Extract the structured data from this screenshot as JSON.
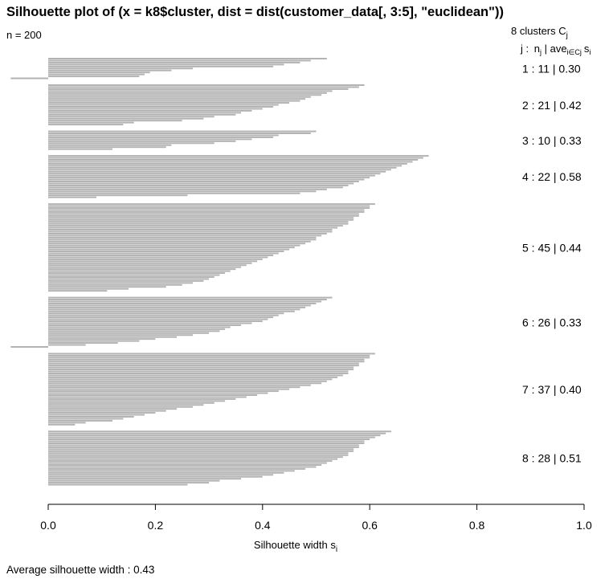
{
  "chart_data": {
    "type": "bar",
    "orientation": "horizontal",
    "title": "Silhouette plot of (x = k8$cluster, dist = dist(customer_data[, 3:5], \"euclidean\"))",
    "n_label": "n = 200",
    "n": 200,
    "clusters_header": "8  clusters  C",
    "clusters_header_sub": "j",
    "column_header": {
      "j": "j :",
      "n": "n",
      "n_sub": "j",
      "ave": " | ave",
      "ave_sub": "i∈Cj",
      "s": "s",
      "s_sub": "i"
    },
    "xlabel": "Silhouette width s",
    "xlabel_sub": "i",
    "xlim": [
      0,
      1.0
    ],
    "x_ticks": [
      0,
      0.2,
      0.4,
      0.6,
      0.8,
      1.0
    ],
    "x_tick_labels": [
      "0.0",
      "0.2",
      "0.4",
      "0.6",
      "0.8",
      "1.0"
    ],
    "average_label": "Average silhouette width :  0.43",
    "average_silhouette_width": 0.43,
    "bar_color": "#b3b3b3",
    "clusters": [
      {
        "j": 1,
        "n": 11,
        "ave": 0.3,
        "label": "1 :   11  |  0.30",
        "widths": [
          0.52,
          0.49,
          0.47,
          0.44,
          0.42,
          0.27,
          0.23,
          0.19,
          0.18,
          0.17,
          -0.07
        ]
      },
      {
        "j": 2,
        "n": 21,
        "ave": 0.42,
        "label": "2 :   21  |  0.42",
        "widths": [
          0.59,
          0.58,
          0.56,
          0.53,
          0.52,
          0.51,
          0.49,
          0.48,
          0.47,
          0.45,
          0.43,
          0.42,
          0.4,
          0.38,
          0.36,
          0.35,
          0.31,
          0.29,
          0.25,
          0.16,
          0.14
        ]
      },
      {
        "j": 3,
        "n": 10,
        "ave": 0.33,
        "label": "3 :   10  |  0.33",
        "widths": [
          0.5,
          0.49,
          0.43,
          0.42,
          0.38,
          0.35,
          0.31,
          0.23,
          0.22,
          0.12
        ]
      },
      {
        "j": 4,
        "n": 22,
        "ave": 0.58,
        "label": "4 :   22  |  0.58",
        "widths": [
          0.71,
          0.7,
          0.69,
          0.68,
          0.67,
          0.66,
          0.65,
          0.64,
          0.63,
          0.62,
          0.61,
          0.6,
          0.59,
          0.58,
          0.57,
          0.56,
          0.55,
          0.52,
          0.5,
          0.47,
          0.26,
          0.09
        ]
      },
      {
        "j": 5,
        "n": 45,
        "ave": 0.44,
        "label": "5 :   45  |  0.44",
        "widths": [
          0.61,
          0.6,
          0.6,
          0.59,
          0.59,
          0.58,
          0.58,
          0.57,
          0.57,
          0.56,
          0.56,
          0.55,
          0.54,
          0.53,
          0.53,
          0.52,
          0.51,
          0.5,
          0.5,
          0.49,
          0.48,
          0.47,
          0.46,
          0.45,
          0.44,
          0.43,
          0.42,
          0.41,
          0.4,
          0.39,
          0.38,
          0.37,
          0.36,
          0.35,
          0.34,
          0.33,
          0.32,
          0.31,
          0.3,
          0.29,
          0.27,
          0.25,
          0.22,
          0.15,
          0.11
        ]
      },
      {
        "j": 6,
        "n": 26,
        "ave": 0.33,
        "label": "6 :   26  |  0.33",
        "widths": [
          0.53,
          0.52,
          0.51,
          0.5,
          0.49,
          0.48,
          0.47,
          0.46,
          0.44,
          0.43,
          0.42,
          0.41,
          0.4,
          0.38,
          0.36,
          0.34,
          0.33,
          0.32,
          0.3,
          0.27,
          0.24,
          0.2,
          0.17,
          0.13,
          0.07,
          -0.07
        ]
      },
      {
        "j": 7,
        "n": 37,
        "ave": 0.4,
        "label": "7 :   37  |  0.40",
        "widths": [
          0.61,
          0.6,
          0.6,
          0.59,
          0.59,
          0.58,
          0.58,
          0.57,
          0.57,
          0.56,
          0.56,
          0.55,
          0.54,
          0.53,
          0.52,
          0.51,
          0.49,
          0.47,
          0.45,
          0.43,
          0.41,
          0.39,
          0.37,
          0.35,
          0.33,
          0.31,
          0.29,
          0.27,
          0.24,
          0.22,
          0.2,
          0.18,
          0.16,
          0.14,
          0.12,
          0.07,
          0.05
        ]
      },
      {
        "j": 8,
        "n": 28,
        "ave": 0.51,
        "label": "8 :   28  |  0.51",
        "widths": [
          0.64,
          0.63,
          0.62,
          0.61,
          0.6,
          0.59,
          0.59,
          0.58,
          0.58,
          0.57,
          0.57,
          0.56,
          0.56,
          0.55,
          0.54,
          0.53,
          0.52,
          0.51,
          0.5,
          0.48,
          0.46,
          0.44,
          0.42,
          0.4,
          0.36,
          0.32,
          0.3,
          0.26
        ]
      }
    ]
  }
}
